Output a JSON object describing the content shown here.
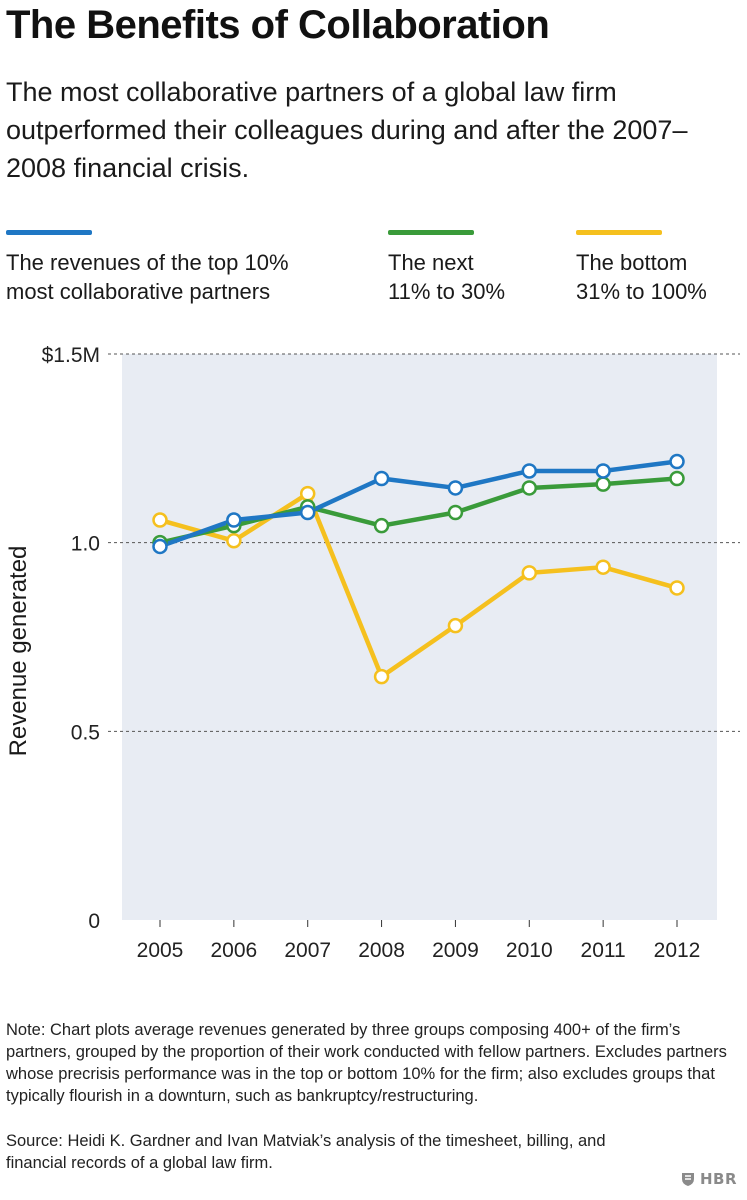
{
  "header": {
    "title": "The Benefits of Collaboration",
    "subtitle": "The most collaborative partners of a global law firm outperformed their colleagues during and after the 2007–2008 financial crisis."
  },
  "legend": [
    {
      "label_line1": "The revenues of the top 10%",
      "label_line2": "most collaborative partners",
      "color": "#1f77c4"
    },
    {
      "label_line1": "The next",
      "label_line2": "11% to 30%",
      "color": "#3a9b3a"
    },
    {
      "label_line1": "The bottom",
      "label_line2": "31% to 100%",
      "color": "#f5c01e"
    }
  ],
  "chart_data": {
    "type": "line",
    "x": [
      "2005",
      "2006",
      "2007",
      "2008",
      "2009",
      "2010",
      "2011",
      "2012"
    ],
    "series": [
      {
        "name": "The revenues of the top 10% most collaborative partners",
        "color": "#1f77c4",
        "values": [
          0.99,
          1.06,
          1.08,
          1.17,
          1.145,
          1.19,
          1.19,
          1.215
        ]
      },
      {
        "name": "The next 11% to 30%",
        "color": "#3a9b3a",
        "values": [
          1.0,
          1.045,
          1.095,
          1.045,
          1.08,
          1.145,
          1.155,
          1.17
        ]
      },
      {
        "name": "The bottom 31% to 100%",
        "color": "#f5c01e",
        "values": [
          1.06,
          1.005,
          1.13,
          0.645,
          0.78,
          0.92,
          0.935,
          0.88
        ]
      }
    ],
    "yticks": [
      {
        "value": 0,
        "label": "0"
      },
      {
        "value": 0.5,
        "label": "0.5"
      },
      {
        "value": 1.0,
        "label": "1.0"
      },
      {
        "value": 1.5,
        "label": "$1.5M"
      }
    ],
    "ylabel": "Revenue generated",
    "xlabel": "",
    "ylim": [
      0,
      1.5
    ],
    "grid": "dashed horizontal",
    "plot_background": "#e8ecf3"
  },
  "footer": {
    "note": "Note: Chart plots average revenues generated by three groups composing 400+ of the firm’s partners, grouped by the proportion of their work conducted with fellow partners. Excludes partners whose precrisis performance was in the top or bottom 10% for the firm; also excludes groups that typically flourish in a downturn, such as bankruptcy/restructuring.",
    "source": "Source: Heidi K. Gardner and Ivan Matviak’s analysis of the timesheet, billing, and financial records of a global law firm.",
    "logo": "HBR"
  }
}
